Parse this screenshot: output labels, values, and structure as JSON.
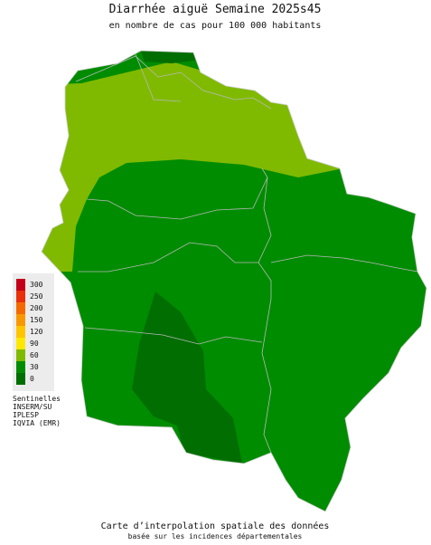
{
  "header": {
    "title": "Diarrhée aiguë Semaine 2025s45",
    "subtitle": "en nombre de cas pour 100 000 habitants"
  },
  "legend": {
    "scale": [
      {
        "value": 300,
        "color": "#c40018"
      },
      {
        "value": 250,
        "color": "#e8300a"
      },
      {
        "value": 200,
        "color": "#f46a00"
      },
      {
        "value": 150,
        "color": "#f89800"
      },
      {
        "value": 120,
        "color": "#ffc400"
      },
      {
        "value": 90,
        "color": "#ffe800"
      },
      {
        "value": 60,
        "color": "#7fba00"
      },
      {
        "value": 30,
        "color": "#008c00"
      },
      {
        "value": 0,
        "color": "#006e00"
      }
    ],
    "sources": [
      "Sentinelles",
      "INSERM/SU",
      "IPLESP",
      "IQVIA (EMR)"
    ]
  },
  "footer": {
    "line1": "Carte d’interpolation spatiale des données",
    "line2": "basée sur les incidences départementales"
  }
}
